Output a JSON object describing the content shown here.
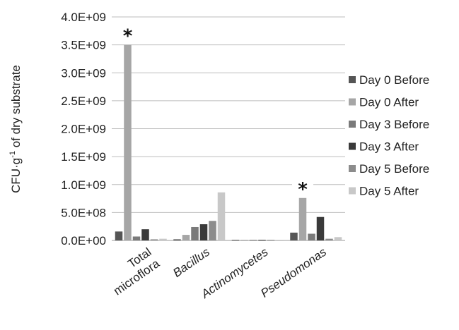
{
  "chart_data": {
    "type": "bar",
    "ylabel_main": "CFU·g",
    "ylabel_sup": "-1",
    "ylabel_rest": " of dry substrate",
    "ylim": [
      0,
      4000000000
    ],
    "yticks": [
      {
        "value": 0,
        "label": "0.0E+00"
      },
      {
        "value": 500000000,
        "label": "5.0E+08"
      },
      {
        "value": 1000000000,
        "label": "1.0E+09"
      },
      {
        "value": 1500000000,
        "label": "1.5E+09"
      },
      {
        "value": 2000000000,
        "label": "2.0E+09"
      },
      {
        "value": 2500000000,
        "label": "2.5E+09"
      },
      {
        "value": 3000000000,
        "label": "3.0E+09"
      },
      {
        "value": 3500000000,
        "label": "3.5E+09"
      },
      {
        "value": 4000000000,
        "label": "4.0E+09"
      }
    ],
    "grid": true,
    "legend_position": "right",
    "categories": [
      {
        "lines": [
          "Total",
          "microflora"
        ],
        "italic": false
      },
      {
        "lines": [
          "Bacillus"
        ],
        "italic": true
      },
      {
        "lines": [
          "Actinomycetes"
        ],
        "italic": true
      },
      {
        "lines": [
          "Pseudomonas"
        ],
        "italic": true
      }
    ],
    "series": [
      {
        "name": "Day 0 Before",
        "color": "#555555",
        "values": [
          160000000,
          20000000,
          10000000,
          140000000
        ]
      },
      {
        "name": "Day 0 After",
        "color": "#a6a6a6",
        "values": [
          3500000000,
          100000000,
          10000000,
          760000000
        ]
      },
      {
        "name": "Day 3 Before",
        "color": "#7a7a7a",
        "values": [
          70000000,
          240000000,
          10000000,
          120000000
        ]
      },
      {
        "name": "Day 3 After",
        "color": "#3a3a3a",
        "values": [
          200000000,
          290000000,
          10000000,
          420000000
        ]
      },
      {
        "name": "Day 5 Before",
        "color": "#8c8c8c",
        "values": [
          20000000,
          350000000,
          10000000,
          30000000
        ]
      },
      {
        "name": "Day 5 After",
        "color": "#c8c8c8",
        "values": [
          30000000,
          860000000,
          10000000,
          60000000
        ]
      }
    ],
    "annotations": [
      {
        "text": "*",
        "category_index": 0,
        "series_index": 1
      },
      {
        "text": "*",
        "category_index": 3,
        "series_index": 1
      }
    ]
  }
}
